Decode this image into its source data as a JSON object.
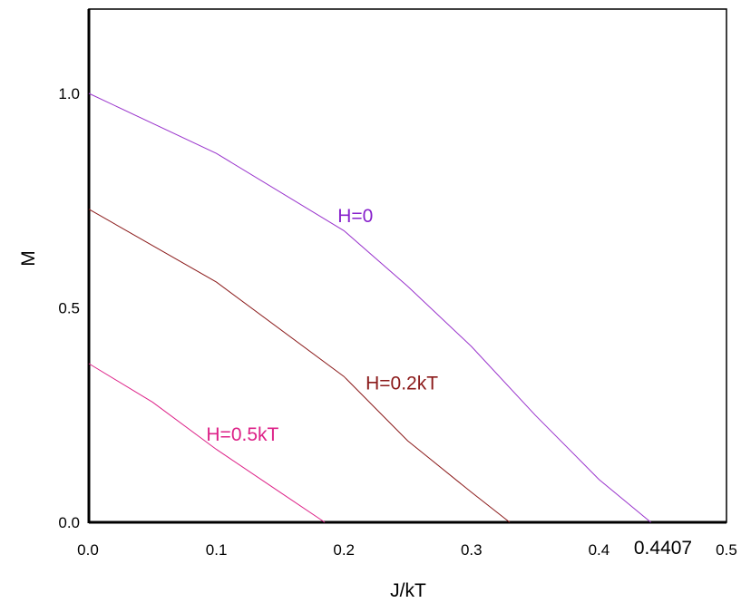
{
  "chart_data": {
    "type": "line",
    "xlabel": "J/kT",
    "ylabel": "M",
    "xlim": [
      0.0,
      0.5
    ],
    "ylim": [
      0.0,
      1.0
    ],
    "x_ticks": [
      {
        "value": 0.0,
        "label": "0.0"
      },
      {
        "value": 0.1,
        "label": "0.1"
      },
      {
        "value": 0.2,
        "label": "0.2"
      },
      {
        "value": 0.3,
        "label": "0.3"
      },
      {
        "value": 0.4,
        "label": "0.4"
      },
      {
        "value": 0.5,
        "label": "0.5"
      }
    ],
    "y_ticks": [
      {
        "value": 0.0,
        "label": "0.0"
      },
      {
        "value": 0.5,
        "label": "0.5"
      },
      {
        "value": 1.0,
        "label": "1.0"
      }
    ],
    "special_x_label": {
      "value": 0.4407,
      "label": "0.4407"
    },
    "grid": false,
    "series": [
      {
        "name": "H=0",
        "color": "#9933cc",
        "x": [
          0.0,
          0.1,
          0.2,
          0.25,
          0.3,
          0.35,
          0.4,
          0.4407
        ],
        "y": [
          1.0,
          0.86,
          0.68,
          0.55,
          0.41,
          0.25,
          0.1,
          0.0
        ]
      },
      {
        "name": "H=0.2kT",
        "color": "#8b1a1a",
        "x": [
          0.0,
          0.1,
          0.2,
          0.25,
          0.3,
          0.33
        ],
        "y": [
          0.73,
          0.56,
          0.34,
          0.19,
          0.07,
          0.0
        ]
      },
      {
        "name": "H=0.5kT",
        "color": "#dd2288",
        "x": [
          0.0,
          0.05,
          0.1,
          0.15,
          0.185
        ],
        "y": [
          0.37,
          0.28,
          0.17,
          0.07,
          0.0
        ]
      }
    ],
    "annotations": [
      {
        "text": "H=0",
        "x": 0.195,
        "y": 0.7,
        "color": "#8822cc"
      },
      {
        "text": "H=0.2kT",
        "x": 0.217,
        "y": 0.31,
        "color": "#8b1a1a"
      },
      {
        "text": "H=0.5kT",
        "x": 0.092,
        "y": 0.19,
        "color": "#dd2288"
      }
    ]
  }
}
